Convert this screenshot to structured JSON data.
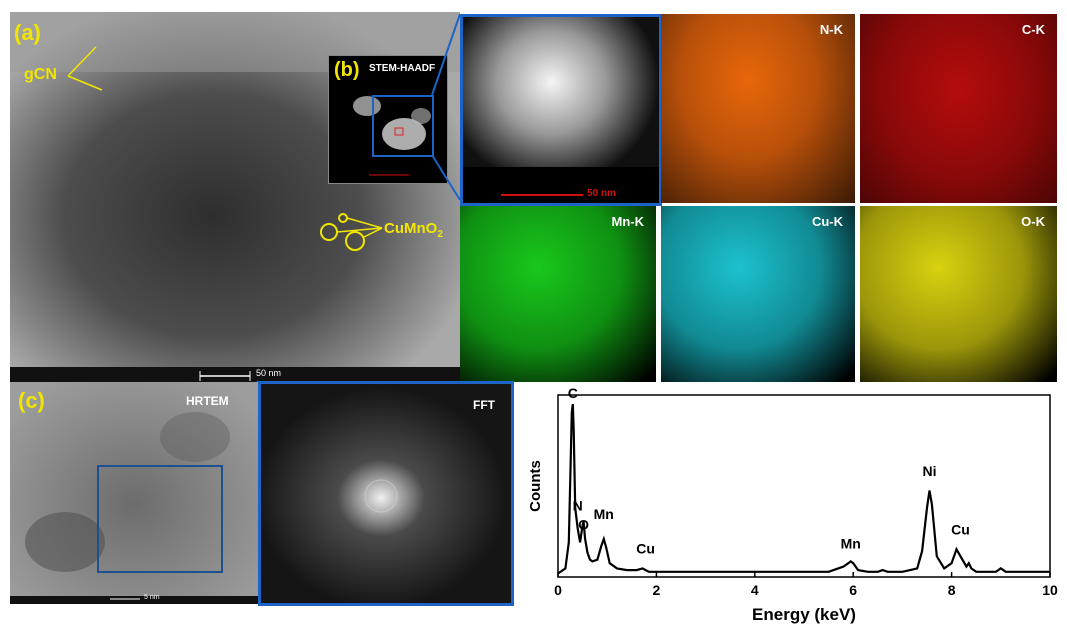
{
  "panel_a": {
    "label": "(a)",
    "gcn": "gCN",
    "cumno2_base": "CuMnO",
    "cumno2_sub": "2",
    "scale": "50 nm"
  },
  "panel_b": {
    "label": "(b)",
    "title": "STEM-HAADF",
    "zoom_scale": "50 nm"
  },
  "maps": [
    {
      "label": "N-K",
      "color": "#e8670a"
    },
    {
      "label": "C-K",
      "color": "#d40f0f"
    },
    {
      "label": "Mn-K",
      "color": "#19c81c"
    },
    {
      "label": "Cu-K",
      "color": "#1cc2cf"
    },
    {
      "label": "O-K",
      "color": "#d8d20f"
    }
  ],
  "panel_c": {
    "label": "(c)",
    "hrtem": "HRTEM",
    "fft": "FFT",
    "scale": "5 nm"
  },
  "chart_data": {
    "type": "line",
    "xlabel": "Energy (keV)",
    "ylabel": "Counts",
    "xlim": [
      0,
      10
    ],
    "ylim": [
      0,
      1
    ],
    "xticks": [
      0,
      2,
      4,
      6,
      8,
      10
    ],
    "grid": false,
    "series": [
      {
        "values_x": [
          0.0,
          0.15,
          0.22,
          0.26,
          0.28,
          0.3,
          0.32,
          0.35,
          0.4,
          0.45,
          0.5,
          0.52,
          0.55,
          0.6,
          0.65,
          0.7,
          0.8,
          0.88,
          0.93,
          0.98,
          1.05,
          1.2,
          1.4,
          1.6,
          1.72,
          1.78,
          1.85,
          2.0,
          2.5,
          3.0,
          3.5,
          4.0,
          4.5,
          5.0,
          5.5,
          5.8,
          5.9,
          5.95,
          6.0,
          6.1,
          6.3,
          6.5,
          6.6,
          6.7,
          7.0,
          7.3,
          7.4,
          7.5,
          7.55,
          7.6,
          7.7,
          7.85,
          8.0,
          8.1,
          8.18,
          8.3,
          8.35,
          8.4,
          8.5,
          8.7,
          8.9,
          9.0,
          9.1,
          9.5,
          10.0
        ],
        "values_y": [
          0.02,
          0.05,
          0.2,
          0.7,
          0.95,
          1.0,
          0.85,
          0.4,
          0.28,
          0.2,
          0.3,
          0.32,
          0.22,
          0.14,
          0.1,
          0.09,
          0.1,
          0.18,
          0.22,
          0.17,
          0.08,
          0.05,
          0.04,
          0.04,
          0.05,
          0.04,
          0.03,
          0.03,
          0.03,
          0.03,
          0.03,
          0.03,
          0.03,
          0.03,
          0.03,
          0.06,
          0.08,
          0.09,
          0.08,
          0.04,
          0.03,
          0.03,
          0.04,
          0.03,
          0.03,
          0.05,
          0.15,
          0.4,
          0.5,
          0.42,
          0.12,
          0.05,
          0.08,
          0.16,
          0.12,
          0.06,
          0.08,
          0.05,
          0.03,
          0.03,
          0.03,
          0.05,
          0.03,
          0.03,
          0.03
        ]
      }
    ],
    "annotations": [
      {
        "text": "C",
        "x": 0.3,
        "y": 1.0
      },
      {
        "text": "N",
        "x": 0.4,
        "y": 0.35
      },
      {
        "text": "O",
        "x": 0.52,
        "y": 0.24
      },
      {
        "text": "Mn",
        "x": 0.93,
        "y": 0.3
      },
      {
        "text": "Cu",
        "x": 1.78,
        "y": 0.1
      },
      {
        "text": "Mn",
        "x": 5.95,
        "y": 0.13
      },
      {
        "text": "Ni",
        "x": 7.55,
        "y": 0.55
      },
      {
        "text": "Cu",
        "x": 8.18,
        "y": 0.21
      }
    ]
  }
}
